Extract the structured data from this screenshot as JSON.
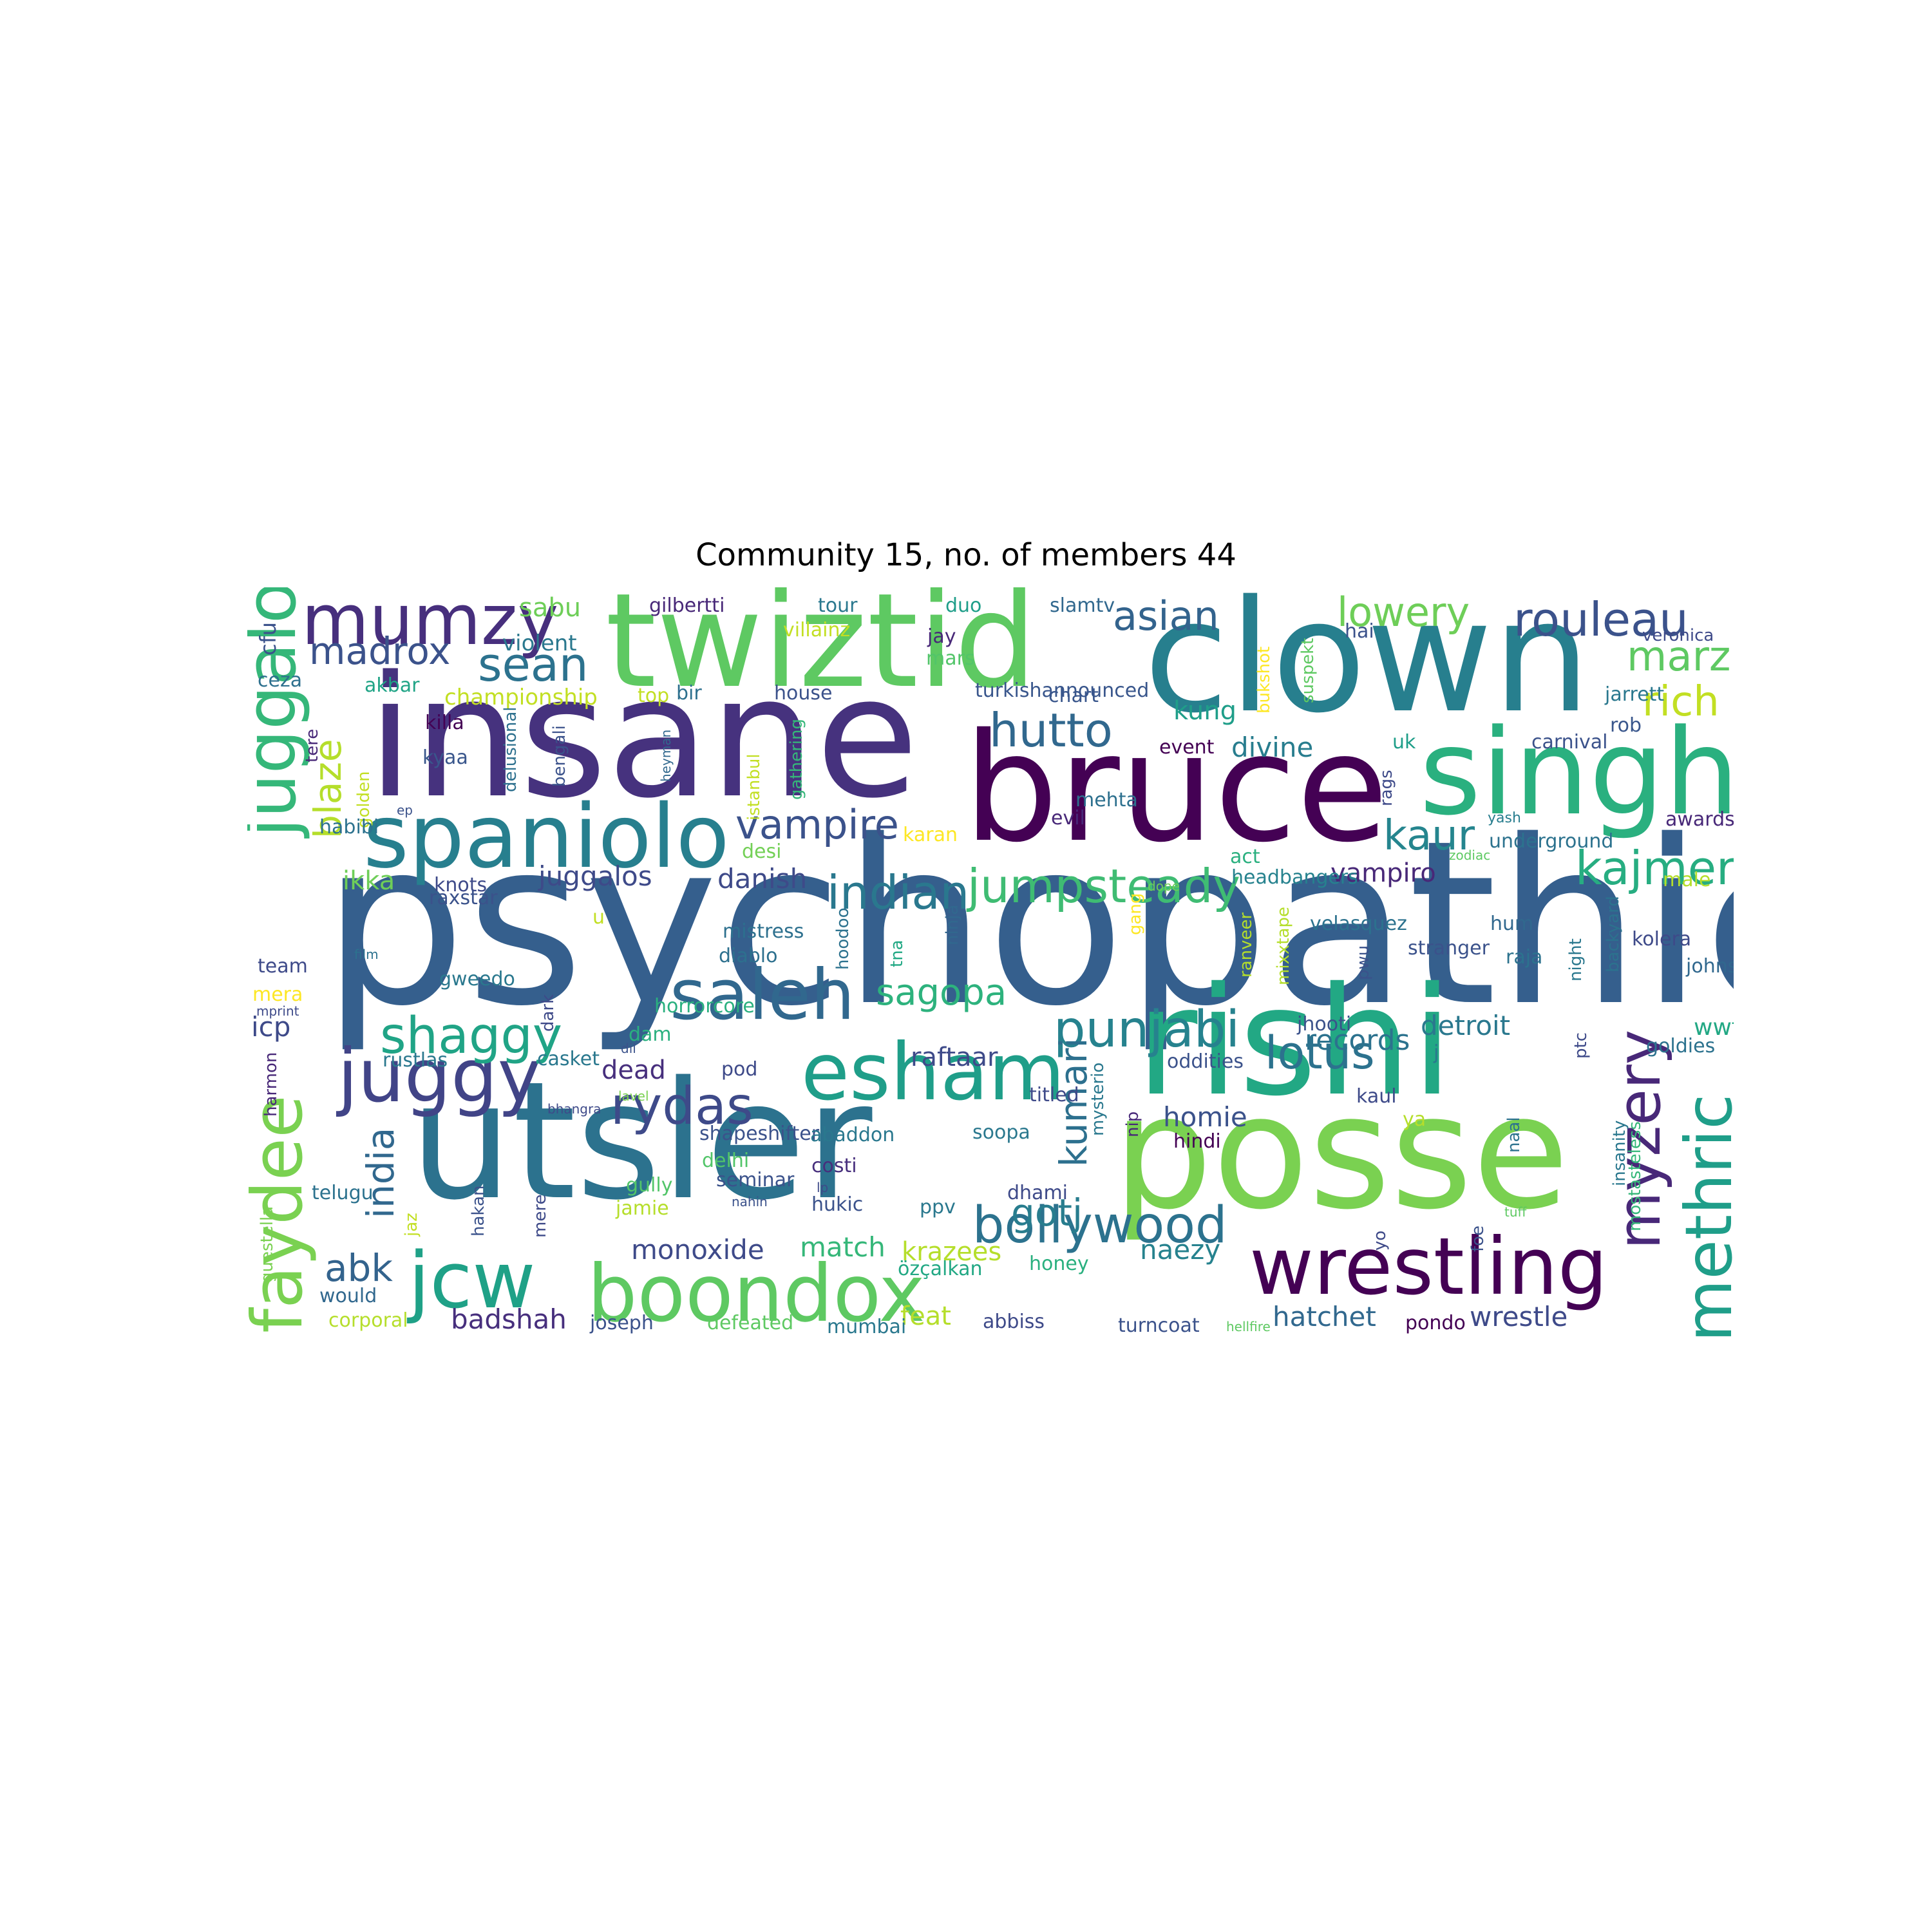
{
  "title": "Community 15, no. of members 44",
  "words": [
    {
      "text": "psychopathic",
      "size": 1.0,
      "color": "#355f8d"
    },
    {
      "text": "insane",
      "size": 0.72,
      "color": "#46327e"
    },
    {
      "text": "clown",
      "size": 0.66,
      "color": "#277f8e"
    },
    {
      "text": "utsler",
      "size": 0.7,
      "color": "#2c728e"
    },
    {
      "text": "posse",
      "size": 0.68,
      "color": "#7ad151"
    },
    {
      "text": "rishi",
      "size": 0.64,
      "color": "#22a884"
    },
    {
      "text": "bruce",
      "size": 0.64,
      "color": "#440154"
    },
    {
      "text": "twiztid",
      "size": 0.56,
      "color": "#5ec962"
    },
    {
      "text": "singh",
      "size": 0.5,
      "color": "#2ab07f"
    },
    {
      "text": "spaniolo",
      "size": 0.38,
      "color": "#277f8e"
    },
    {
      "text": "boondox",
      "size": 0.34,
      "color": "#5ec962"
    },
    {
      "text": "wrestling",
      "size": 0.34,
      "color": "#440154"
    },
    {
      "text": "esham",
      "size": 0.34,
      "color": "#1f9e89"
    },
    {
      "text": "jcw",
      "size": 0.34,
      "color": "#1fa187"
    },
    {
      "text": "juggy",
      "size": 0.32,
      "color": "#414487"
    },
    {
      "text": "saleh",
      "size": 0.3,
      "color": "#31688e"
    },
    {
      "text": "mumzy",
      "size": 0.3,
      "color": "#472f7d"
    },
    {
      "text": "juggalo",
      "size": 0.3,
      "color": "#35b779"
    },
    {
      "text": "faydee",
      "size": 0.3,
      "color": "#7ad151"
    },
    {
      "text": "methric",
      "size": 0.28,
      "color": "#1f9e89"
    },
    {
      "text": "myzery",
      "size": 0.26,
      "color": "#482878"
    },
    {
      "text": "rydas",
      "size": 0.22,
      "color": "#3e4a89"
    },
    {
      "text": "bollywood",
      "size": 0.22,
      "color": "#2c728e"
    },
    {
      "text": "shaggy",
      "size": 0.22,
      "color": "#20a486"
    },
    {
      "text": "punjabi",
      "size": 0.22,
      "color": "#26828e"
    },
    {
      "text": "rouleau",
      "size": 0.2,
      "color": "#3b528b"
    },
    {
      "text": "lotus",
      "size": 0.2,
      "color": "#2c728e"
    },
    {
      "text": "kajmer",
      "size": 0.2,
      "color": "#27ad81"
    },
    {
      "text": "jumpsteady",
      "size": 0.2,
      "color": "#3fbc73"
    },
    {
      "text": "hutto",
      "size": 0.2,
      "color": "#31688e"
    },
    {
      "text": "sean",
      "size": 0.2,
      "color": "#2c728e"
    },
    {
      "text": "indian",
      "size": 0.2,
      "color": "#2a788e"
    },
    {
      "text": "vampire",
      "size": 0.18,
      "color": "#3b528b"
    },
    {
      "text": "kaur",
      "size": 0.18,
      "color": "#25858e"
    },
    {
      "text": "marz",
      "size": 0.18,
      "color": "#5ec962"
    },
    {
      "text": "rich",
      "size": 0.18,
      "color": "#c2df23"
    },
    {
      "text": "lowery",
      "size": 0.18,
      "color": "#6ece58"
    },
    {
      "text": "asian",
      "size": 0.18,
      "color": "#33638d"
    },
    {
      "text": "madrox",
      "size": 0.17,
      "color": "#3b528b"
    },
    {
      "text": "blaze",
      "size": 0.17,
      "color": "#b5de2b"
    },
    {
      "text": "india",
      "size": 0.17,
      "color": "#31688e"
    },
    {
      "text": "abk",
      "size": 0.17,
      "color": "#33638d"
    },
    {
      "text": "gotj",
      "size": 0.17,
      "color": "#287d8e"
    },
    {
      "text": "kumari",
      "size": 0.17,
      "color": "#2d708e"
    },
    {
      "text": "sagopa",
      "size": 0.17,
      "color": "#2db27d"
    },
    {
      "text": "match",
      "size": 0.13,
      "color": "#35b779"
    },
    {
      "text": "monoxide",
      "size": 0.13,
      "color": "#3e4a89"
    },
    {
      "text": "naezy",
      "size": 0.13,
      "color": "#26828e"
    },
    {
      "text": "hatchet",
      "size": 0.13,
      "color": "#31688e"
    },
    {
      "text": "wrestle",
      "size": 0.13,
      "color": "#3e4a89"
    },
    {
      "text": "badshah",
      "size": 0.13,
      "color": "#472f7d"
    },
    {
      "text": "krazees",
      "size": 0.12,
      "color": "#b5de2b"
    },
    {
      "text": "feat",
      "size": 0.12,
      "color": "#b5de2b"
    },
    {
      "text": "homie",
      "size": 0.13,
      "color": "#3b528b"
    },
    {
      "text": "detroit",
      "size": 0.13,
      "color": "#2a788e"
    },
    {
      "text": "divine",
      "size": 0.13,
      "color": "#287d8e"
    },
    {
      "text": "danish",
      "size": 0.13,
      "color": "#3e4a89"
    },
    {
      "text": "juggalos",
      "size": 0.13,
      "color": "#3e4a89"
    },
    {
      "text": "ikka",
      "size": 0.12,
      "color": "#6ece58"
    },
    {
      "text": "icp",
      "size": 0.13,
      "color": "#3e4a89"
    },
    {
      "text": "sabu",
      "size": 0.12,
      "color": "#6ece58"
    },
    {
      "text": "kung",
      "size": 0.12,
      "color": "#1f9e89"
    },
    {
      "text": "vampiro",
      "size": 0.12,
      "color": "#482878"
    },
    {
      "text": "raftaar",
      "size": 0.12,
      "color": "#3e4a89"
    },
    {
      "text": "dead",
      "size": 0.12,
      "color": "#472f7d"
    },
    {
      "text": "wwf",
      "size": 0.11,
      "color": "#22a884"
    },
    {
      "text": "violent",
      "size": 0.1,
      "color": "#2a788e"
    },
    {
      "text": "championship",
      "size": 0.1,
      "color": "#c2df23"
    },
    {
      "text": "cfu",
      "size": 0.1,
      "color": "#3b528b"
    },
    {
      "text": "ceza",
      "size": 0.09,
      "color": "#2d708e"
    },
    {
      "text": "gilbertti",
      "size": 0.09,
      "color": "#482878"
    },
    {
      "text": "tour",
      "size": 0.09,
      "color": "#2a788e"
    },
    {
      "text": "duo",
      "size": 0.09,
      "color": "#1f9e89"
    },
    {
      "text": "slamtv",
      "size": 0.09,
      "color": "#31688e"
    },
    {
      "text": "hai",
      "size": 0.09,
      "color": "#3b528b"
    },
    {
      "text": "veronica",
      "size": 0.09,
      "color": "#3e4a89"
    },
    {
      "text": "villainz",
      "size": 0.08,
      "color": "#c2df23"
    },
    {
      "text": "jay",
      "size": 0.09,
      "color": "#482878"
    },
    {
      "text": "mars",
      "size": 0.09,
      "color": "#52c569"
    },
    {
      "text": "akbar",
      "size": 0.09,
      "color": "#20a486"
    },
    {
      "text": "top",
      "size": 0.09,
      "color": "#c2df23"
    },
    {
      "text": "bir",
      "size": 0.09,
      "color": "#2d708e"
    },
    {
      "text": "house",
      "size": 0.09,
      "color": "#3b528b"
    },
    {
      "text": "turkishannounced",
      "size": 0.09,
      "color": "#39568c"
    },
    {
      "text": "chart",
      "size": 0.09,
      "color": "#39568c"
    },
    {
      "text": "bukshot",
      "size": 0.09,
      "color": "#fde725"
    },
    {
      "text": "suspekt",
      "size": 0.08,
      "color": "#5ec962"
    },
    {
      "text": "jarrett",
      "size": 0.08,
      "color": "#2a788e"
    },
    {
      "text": "rob",
      "size": 0.09,
      "color": "#39568c"
    },
    {
      "text": "uk",
      "size": 0.09,
      "color": "#1f9e89"
    },
    {
      "text": "carnival",
      "size": 0.09,
      "color": "#3b528b"
    },
    {
      "text": "awards",
      "size": 0.09,
      "color": "#482878"
    },
    {
      "text": "yash",
      "size": 0.09,
      "color": "#287d8e"
    },
    {
      "text": "underground",
      "size": 0.07,
      "color": "#2c728e"
    },
    {
      "text": "zodiac",
      "size": 0.09,
      "color": "#5ec962"
    },
    {
      "text": "male",
      "size": 0.06,
      "color": "#b5de2b"
    },
    {
      "text": "killa",
      "size": 0.09,
      "color": "#440154"
    },
    {
      "text": "kyaa",
      "size": 0.09,
      "color": "#39568c"
    },
    {
      "text": "tere",
      "size": 0.09,
      "color": "#482878"
    },
    {
      "text": "golden",
      "size": 0.08,
      "color": "#c2df23"
    },
    {
      "text": "delusional",
      "size": 0.08,
      "color": "#2d708e"
    },
    {
      "text": "bengali",
      "size": 0.08,
      "color": "#3b528b"
    },
    {
      "text": "heyman",
      "size": 0.08,
      "color": "#31688e"
    },
    {
      "text": "istanbul",
      "size": 0.06,
      "color": "#c2df23"
    },
    {
      "text": "gathering",
      "size": 0.08,
      "color": "#35b779"
    },
    {
      "text": "event",
      "size": 0.08,
      "color": "#440154"
    },
    {
      "text": "mehta",
      "size": 0.09,
      "color": "#2d708e"
    },
    {
      "text": "evil",
      "size": 0.09,
      "color": "#482878"
    },
    {
      "text": "rags",
      "size": 0.09,
      "color": "#3e4a89"
    },
    {
      "text": "habibi",
      "size": 0.08,
      "color": "#2c728e"
    },
    {
      "text": "ep",
      "size": 0.09,
      "color": "#3b528b"
    },
    {
      "text": "karan",
      "size": 0.06,
      "color": "#fde725"
    },
    {
      "text": "desi",
      "size": 0.09,
      "color": "#73d056"
    },
    {
      "text": "act",
      "size": 0.09,
      "color": "#2ab07f"
    },
    {
      "text": "headbangers",
      "size": 0.09,
      "color": "#26828e"
    },
    {
      "text": "dope",
      "size": 0.09,
      "color": "#6ece58"
    },
    {
      "text": "knots",
      "size": 0.06,
      "color": "#3e4a89"
    },
    {
      "text": "raxstar",
      "size": 0.09,
      "color": "#3b528b"
    },
    {
      "text": "u",
      "size": 0.09,
      "color": "#c2df23"
    },
    {
      "text": "tna",
      "size": 0.09,
      "color": "#22a884"
    },
    {
      "text": "mistress",
      "size": 0.08,
      "color": "#2d708e"
    },
    {
      "text": "diablo",
      "size": 0.09,
      "color": "#2d708e"
    },
    {
      "text": "hoodoo",
      "size": 0.09,
      "color": "#2c728e"
    },
    {
      "text": "ninja",
      "size": 0.08,
      "color": "#31688e"
    },
    {
      "text": "gang",
      "size": 0.08,
      "color": "#fde725"
    },
    {
      "text": "ranveer",
      "size": 0.08,
      "color": "#b5de2b"
    },
    {
      "text": "mixxtape",
      "size": 0.08,
      "color": "#b5de2b"
    },
    {
      "text": "velasquez",
      "size": 0.08,
      "color": "#2c728e"
    },
    {
      "text": "pwu",
      "size": 0.09,
      "color": "#3b528b"
    },
    {
      "text": "stranger",
      "size": 0.08,
      "color": "#3b528b"
    },
    {
      "text": "hum",
      "size": 0.09,
      "color": "#31688e"
    },
    {
      "text": "raja",
      "size": 0.09,
      "color": "#2c728e"
    },
    {
      "text": "night",
      "size": 0.09,
      "color": "#2a788e"
    },
    {
      "text": "backyard",
      "size": 0.08,
      "color": "#2c728e"
    },
    {
      "text": "kolera",
      "size": 0.08,
      "color": "#3e4a89"
    },
    {
      "text": "johnson",
      "size": 0.09,
      "color": "#31688e"
    },
    {
      "text": "film",
      "size": 0.09,
      "color": "#2c728e"
    },
    {
      "text": "team",
      "size": 0.06,
      "color": "#3e4a89"
    },
    {
      "text": "mera",
      "size": 0.09,
      "color": "#fde725"
    },
    {
      "text": "mprint",
      "size": 0.09,
      "color": "#3e4a89"
    },
    {
      "text": "gweedo",
      "size": 0.06,
      "color": "#2a788e"
    },
    {
      "text": "dark",
      "size": 0.09,
      "color": "#3e4a89"
    },
    {
      "text": "horrorcore",
      "size": 0.08,
      "color": "#2ab07f"
    },
    {
      "text": "dam",
      "size": 0.09,
      "color": "#2ab07f"
    },
    {
      "text": "dil",
      "size": 0.09,
      "color": "#3b528b"
    },
    {
      "text": "jhooti",
      "size": 0.06,
      "color": "#3b528b"
    },
    {
      "text": "oddities",
      "size": 0.09,
      "color": "#3b528b"
    },
    {
      "text": "records",
      "size": 0.09,
      "color": "#2c728e"
    },
    {
      "text": "j",
      "size": 0.11,
      "color": "#2a788e"
    },
    {
      "text": "goldies",
      "size": 0.09,
      "color": "#2c728e"
    },
    {
      "text": "rustlas",
      "size": 0.09,
      "color": "#2a788e"
    },
    {
      "text": "casket",
      "size": 0.09,
      "color": "#2a788e"
    },
    {
      "text": "pod",
      "size": 0.09,
      "color": "#3e4a89"
    },
    {
      "text": "harmon",
      "size": 0.09,
      "color": "#482878"
    },
    {
      "text": "bhangra",
      "size": 0.08,
      "color": "#3e4a89"
    },
    {
      "text": "lavel",
      "size": 0.06,
      "color": "#7ad151"
    },
    {
      "text": "titled",
      "size": 0.06,
      "color": "#3e4a89"
    },
    {
      "text": "nip",
      "size": 0.09,
      "color": "#482878"
    },
    {
      "text": "mysterio",
      "size": 0.08,
      "color": "#2a788e"
    },
    {
      "text": "kaul",
      "size": 0.08,
      "color": "#3e4a89"
    },
    {
      "text": "ptc",
      "size": 0.09,
      "color": "#3e4a89"
    },
    {
      "text": "ya",
      "size": 0.08,
      "color": "#b5de2b"
    },
    {
      "text": "naal",
      "size": 0.09,
      "color": "#2c728e"
    },
    {
      "text": "foe",
      "size": 0.09,
      "color": "#3b528b"
    },
    {
      "text": "mostasteless",
      "size": 0.08,
      "color": "#35b779"
    },
    {
      "text": "shapeshifter",
      "size": 0.08,
      "color": "#3b528b"
    },
    {
      "text": "abaddon",
      "size": 0.09,
      "color": "#2a788e"
    },
    {
      "text": "soopa",
      "size": 0.09,
      "color": "#2a788e"
    },
    {
      "text": "hindi",
      "size": 0.09,
      "color": "#440154"
    },
    {
      "text": "delhi",
      "size": 0.09,
      "color": "#52c569"
    },
    {
      "text": "costi",
      "size": 0.09,
      "color": "#472f7d"
    },
    {
      "text": "yo",
      "size": 0.09,
      "color": "#3e4a89"
    },
    {
      "text": "insanity",
      "size": 0.08,
      "color": "#2a788e"
    },
    {
      "text": "jaz",
      "size": 0.08,
      "color": "#c2df23"
    },
    {
      "text": "hakan",
      "size": 0.08,
      "color": "#3b528b"
    },
    {
      "text": "seminar",
      "size": 0.08,
      "color": "#3b528b"
    },
    {
      "text": "gully",
      "size": 0.09,
      "color": "#52c569"
    },
    {
      "text": "lp",
      "size": 0.09,
      "color": "#3e4a89"
    },
    {
      "text": "nahin",
      "size": 0.06,
      "color": "#3b528b"
    },
    {
      "text": "telugu",
      "size": 0.06,
      "color": "#2c728e"
    },
    {
      "text": "mere",
      "size": 0.09,
      "color": "#3e4a89"
    },
    {
      "text": "jamie",
      "size": 0.08,
      "color": "#b5de2b"
    },
    {
      "text": "hukic",
      "size": 0.09,
      "color": "#3b528b"
    },
    {
      "text": "ppv",
      "size": 0.09,
      "color": "#2a788e"
    },
    {
      "text": "dhami",
      "size": 0.09,
      "color": "#3e4a89"
    },
    {
      "text": "tuff",
      "size": 0.09,
      "color": "#5ec962"
    },
    {
      "text": "guestella",
      "size": 0.06,
      "color": "#7ad151"
    },
    {
      "text": "özçalkan",
      "size": 0.08,
      "color": "#22a884"
    },
    {
      "text": "honey",
      "size": 0.09,
      "color": "#2ab07f"
    },
    {
      "text": "would",
      "size": 0.09,
      "color": "#31688e"
    },
    {
      "text": "corporal",
      "size": 0.09,
      "color": "#b5de2b"
    },
    {
      "text": "joseph",
      "size": 0.09,
      "color": "#3b528b"
    },
    {
      "text": "defeated",
      "size": 0.09,
      "color": "#5ec962"
    },
    {
      "text": "mumbai",
      "size": 0.09,
      "color": "#2a788e"
    },
    {
      "text": "abbiss",
      "size": 0.09,
      "color": "#3e4a89"
    },
    {
      "text": "turncoat",
      "size": 0.09,
      "color": "#3b528b"
    },
    {
      "text": "hellfire",
      "size": 0.09,
      "color": "#5ec962"
    },
    {
      "text": "pondo",
      "size": 0.06,
      "color": "#440154"
    },
    {
      "text": "majik",
      "size": 0.09,
      "color": "#3e4a89"
    }
  ]
}
